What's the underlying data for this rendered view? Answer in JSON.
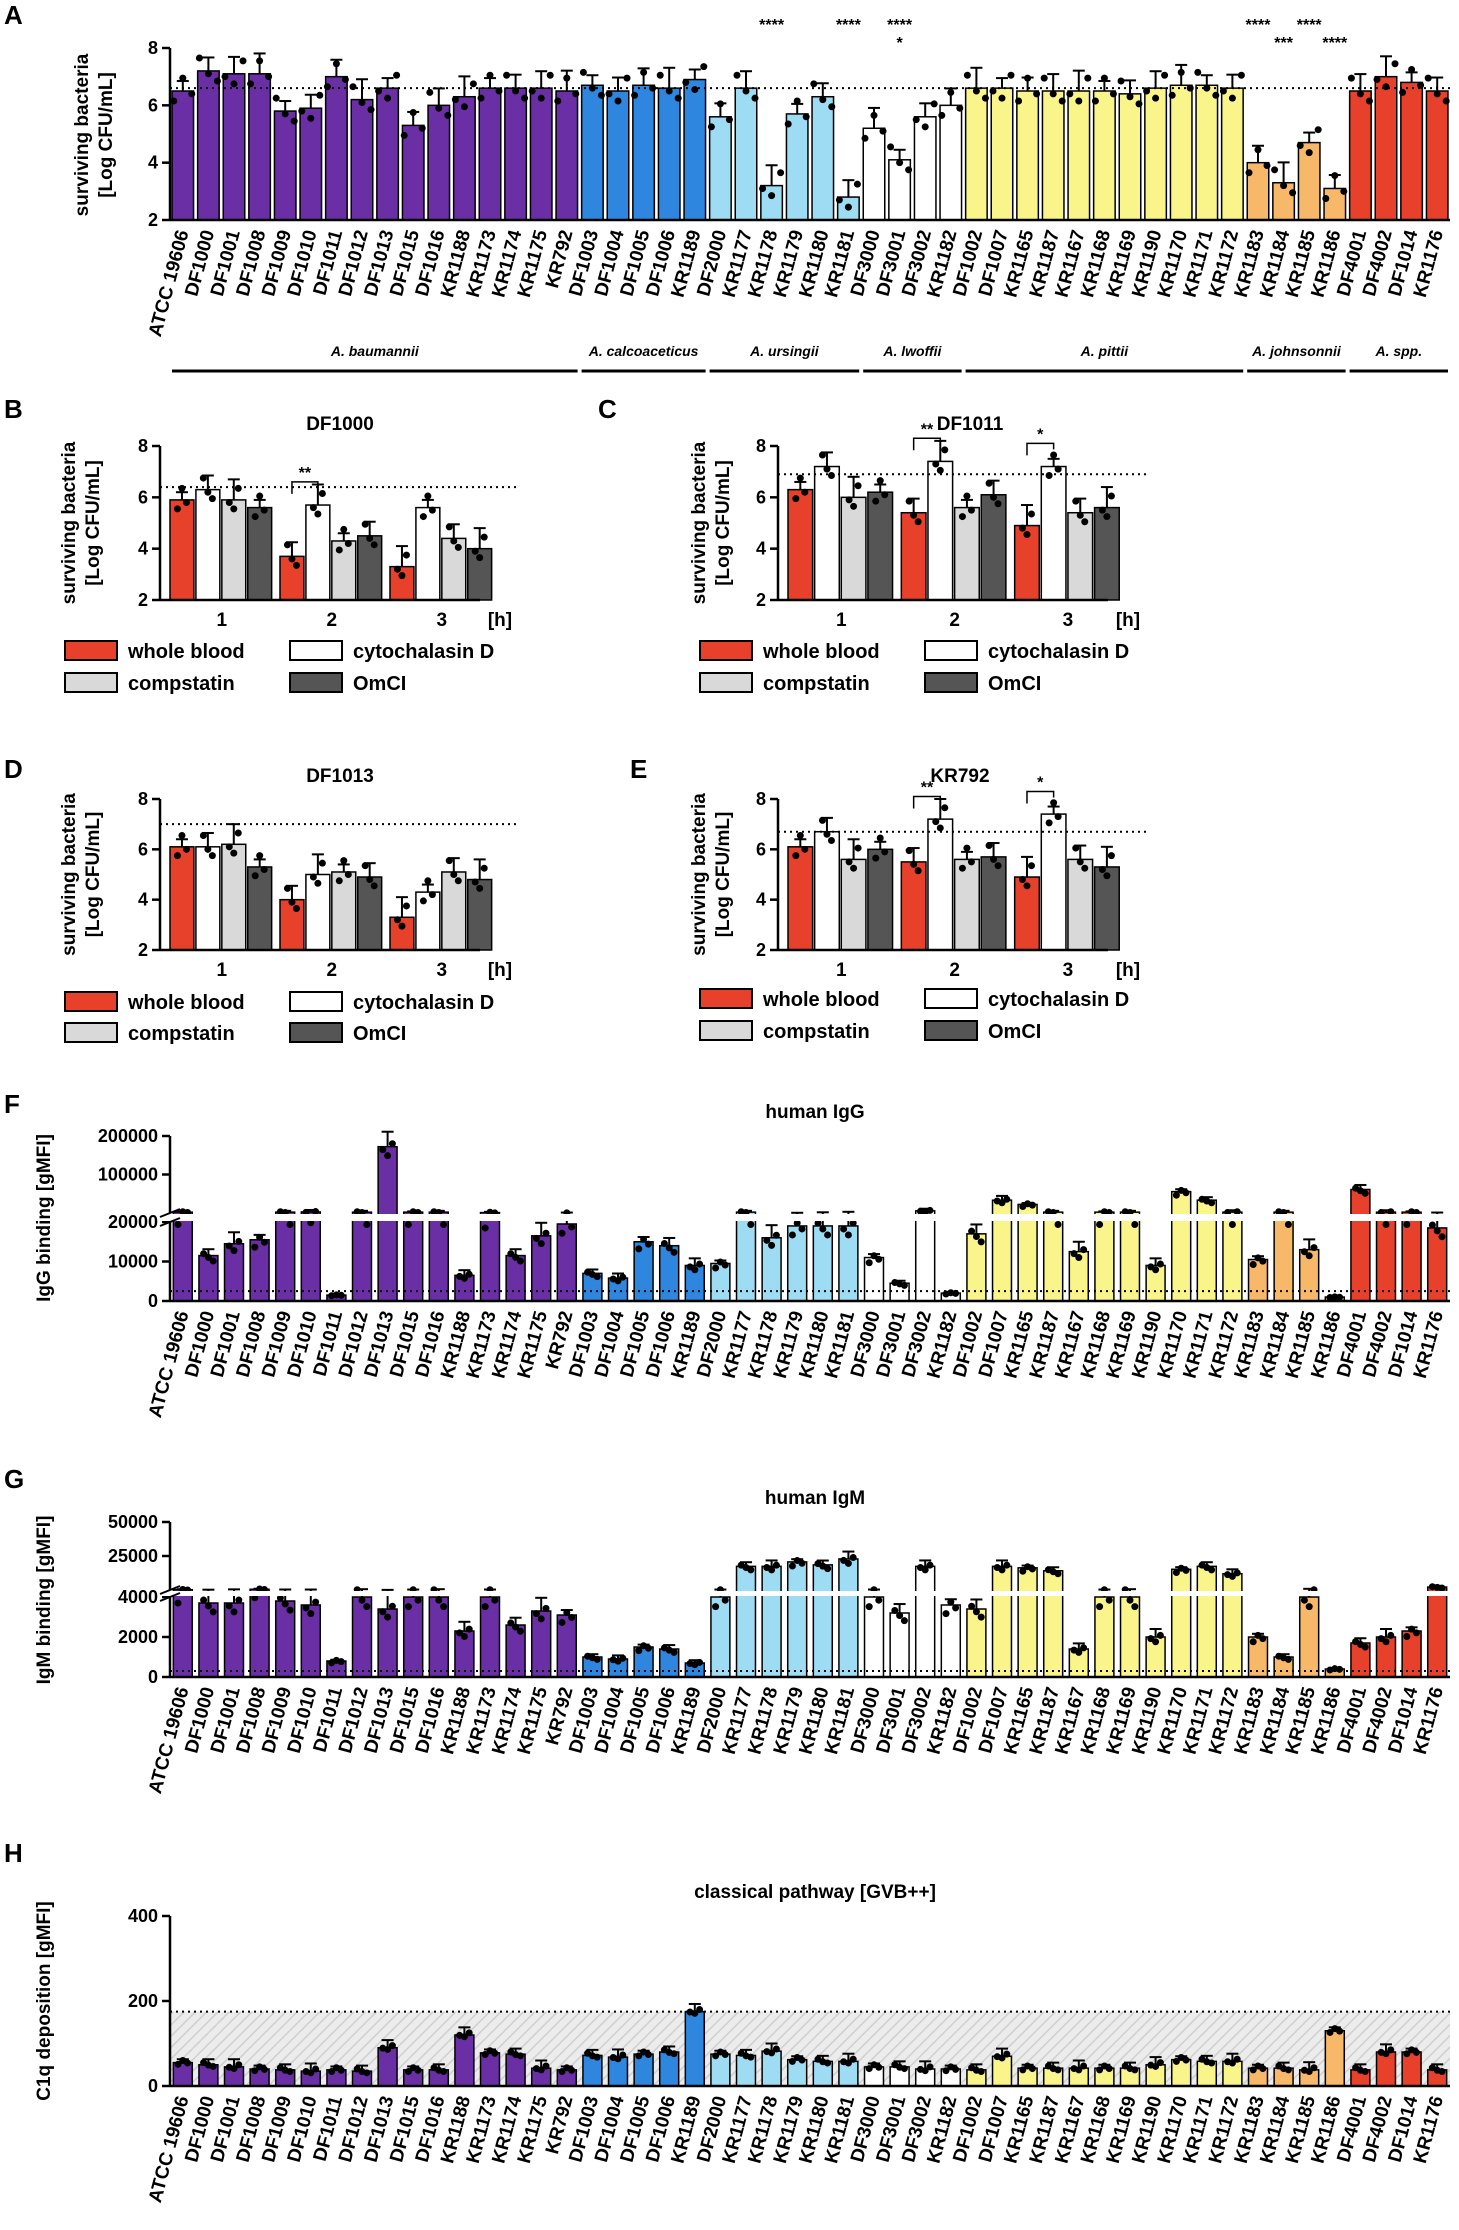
{
  "colors": {
    "purple": "#6b2fa5",
    "blue": "#2e86de",
    "lightblue": "#9edcf4",
    "white": "#ffffff",
    "yellow": "#faf58a",
    "orange": "#f7b86a",
    "red": "#e8412b",
    "lightgray": "#d9d9d9",
    "darkgray": "#555555"
  },
  "legend": {
    "whole_blood": "whole blood",
    "cytochalasin": "cytochalasin D",
    "compstatin": "compstatin",
    "omci": "OmCI"
  },
  "chart_data": [
    {
      "panel": "A",
      "type": "bar",
      "title": "",
      "ylabel": [
        "surviving bacteria",
        "[Log CFU/mL]"
      ],
      "ylim": [
        2,
        8
      ],
      "yticks": [
        "2",
        "4",
        "6",
        "8"
      ],
      "threshold": 6.6,
      "categories": [
        "ATCC 19606",
        "DF1000",
        "DF1001",
        "DF1008",
        "DF1009",
        "DF1010",
        "DF1011",
        "DF1012",
        "DF1013",
        "DF1015",
        "DF1016",
        "KR1188",
        "KR1173",
        "KR1174",
        "KR1175",
        "KR792",
        "DF1003",
        "DF1004",
        "DF1005",
        "DF1006",
        "KR1189",
        "DF2000",
        "KR1177",
        "KR1178",
        "KR1179",
        "KR1180",
        "KR1181",
        "DF3000",
        "DF3001",
        "DF3002",
        "KR1182",
        "DF1002",
        "DF1007",
        "KR1165",
        "KR1187",
        "KR1167",
        "KR1168",
        "KR1169",
        "KR1190",
        "KR1170",
        "KR1171",
        "KR1172",
        "KR1183",
        "KR1184",
        "KR1185",
        "KR1186",
        "DF4001",
        "DF4002",
        "DF1014",
        "KR1176"
      ],
      "groups": [
        "purple",
        "purple",
        "purple",
        "purple",
        "purple",
        "purple",
        "purple",
        "purple",
        "purple",
        "purple",
        "purple",
        "purple",
        "purple",
        "purple",
        "purple",
        "purple",
        "blue",
        "blue",
        "blue",
        "blue",
        "blue",
        "lightblue",
        "lightblue",
        "lightblue",
        "lightblue",
        "lightblue",
        "lightblue",
        "white",
        "white",
        "white",
        "white",
        "yellow",
        "yellow",
        "yellow",
        "yellow",
        "yellow",
        "yellow",
        "yellow",
        "yellow",
        "yellow",
        "yellow",
        "yellow",
        "orange",
        "orange",
        "orange",
        "orange",
        "red",
        "red",
        "red",
        "red"
      ],
      "values": [
        6.5,
        7.2,
        7.1,
        7.1,
        5.8,
        5.9,
        7.0,
        6.2,
        6.6,
        5.3,
        6.0,
        6.3,
        6.6,
        6.6,
        6.6,
        6.5,
        6.7,
        6.5,
        6.7,
        6.6,
        6.9,
        5.6,
        6.6,
        3.2,
        5.7,
        6.3,
        2.8,
        5.2,
        4.1,
        5.6,
        6.0,
        6.6,
        6.6,
        6.5,
        6.5,
        6.5,
        6.5,
        6.4,
        6.6,
        6.7,
        6.7,
        6.6,
        4.0,
        3.3,
        4.7,
        3.1,
        6.5,
        7.0,
        6.8,
        6.5
      ],
      "stars": [
        {
          "category": "KR1178",
          "text": "****",
          "row": 0
        },
        {
          "category": "KR1181",
          "text": "****",
          "row": 0
        },
        {
          "category": "DF3001",
          "text": "****",
          "row": 0
        },
        {
          "category": "DF3001",
          "text": "*",
          "row": 1
        },
        {
          "category": "KR1183",
          "text": "****",
          "row": 0
        },
        {
          "category": "KR1184",
          "text": "***",
          "row": 1
        },
        {
          "category": "KR1185",
          "text": "****",
          "row": 0
        },
        {
          "category": "KR1186",
          "text": "****",
          "row": 1
        }
      ],
      "species": [
        {
          "name": "A. baumannii",
          "from": 0,
          "to": 15
        },
        {
          "name": "A. calcoaceticus",
          "from": 16,
          "to": 20
        },
        {
          "name": "A. ursingii",
          "from": 21,
          "to": 26
        },
        {
          "name": "A. lwoffii",
          "from": 27,
          "to": 30
        },
        {
          "name": "A. pittii",
          "from": 31,
          "to": 41
        },
        {
          "name": "A. johnsonnii",
          "from": 42,
          "to": 45
        },
        {
          "name": "A. spp.",
          "from": 46,
          "to": 49
        }
      ]
    },
    {
      "panel": "B",
      "type": "bar",
      "title": "DF1000",
      "ylabel": [
        "surviving bacteria",
        "[Log CFU/mL]"
      ],
      "ylim": [
        2,
        8
      ],
      "yticks": [
        "2",
        "4",
        "6",
        "8"
      ],
      "threshold": 6.4,
      "xlabels": [
        "1",
        "2",
        "3"
      ],
      "xunit": "[h]",
      "series": [
        {
          "name": "whole blood",
          "values": [
            5.9,
            3.7,
            3.3
          ]
        },
        {
          "name": "cytochalasin D",
          "values": [
            6.3,
            5.7,
            5.6
          ]
        },
        {
          "name": "compstatin",
          "values": [
            5.9,
            4.3,
            4.4
          ]
        },
        {
          "name": "OmCI",
          "values": [
            5.6,
            4.5,
            4.0
          ]
        }
      ],
      "sig": [
        {
          "group": 1,
          "text": "**"
        }
      ]
    },
    {
      "panel": "C",
      "type": "bar",
      "title": "DF1011",
      "ylabel": [
        "surviving bacteria",
        "[Log CFU/mL]"
      ],
      "ylim": [
        2,
        8
      ],
      "yticks": [
        "2",
        "4",
        "6",
        "8"
      ],
      "threshold": 6.9,
      "xlabels": [
        "1",
        "2",
        "3"
      ],
      "xunit": "[h]",
      "series": [
        {
          "name": "whole blood",
          "values": [
            6.3,
            5.4,
            4.9
          ]
        },
        {
          "name": "cytochalasin D",
          "values": [
            7.2,
            7.4,
            7.2
          ]
        },
        {
          "name": "compstatin",
          "values": [
            6.0,
            5.6,
            5.4
          ]
        },
        {
          "name": "OmCI",
          "values": [
            6.2,
            6.1,
            5.6
          ]
        }
      ],
      "sig": [
        {
          "group": 1,
          "text": "**"
        },
        {
          "group": 2,
          "text": "*"
        }
      ]
    },
    {
      "panel": "D",
      "type": "bar",
      "title": "DF1013",
      "ylabel": [
        "surviving bacteria",
        "[Log CFU/mL]"
      ],
      "ylim": [
        2,
        8
      ],
      "yticks": [
        "2",
        "4",
        "6",
        "8"
      ],
      "threshold": 7.0,
      "xlabels": [
        "1",
        "2",
        "3"
      ],
      "xunit": "[h]",
      "series": [
        {
          "name": "whole blood",
          "values": [
            6.1,
            4.0,
            3.3
          ]
        },
        {
          "name": "cytochalasin D",
          "values": [
            6.1,
            5.0,
            4.3
          ]
        },
        {
          "name": "compstatin",
          "values": [
            6.2,
            5.1,
            5.1
          ]
        },
        {
          "name": "OmCI",
          "values": [
            5.3,
            4.9,
            4.8
          ]
        }
      ],
      "sig": []
    },
    {
      "panel": "E",
      "type": "bar",
      "title": "KR792",
      "ylabel": [
        "surviving bacteria",
        "[Log CFU/mL]"
      ],
      "ylim": [
        2,
        8
      ],
      "yticks": [
        "2",
        "4",
        "6",
        "8"
      ],
      "threshold": 6.7,
      "xlabels": [
        "1",
        "2",
        "3"
      ],
      "xunit": "[h]",
      "series": [
        {
          "name": "whole blood",
          "values": [
            6.1,
            5.5,
            4.9
          ]
        },
        {
          "name": "cytochalasin D",
          "values": [
            6.7,
            7.2,
            7.4
          ]
        },
        {
          "name": "compstatin",
          "values": [
            5.6,
            5.6,
            5.6
          ]
        },
        {
          "name": "OmCI",
          "values": [
            6.0,
            5.7,
            5.3
          ]
        }
      ],
      "sig": [
        {
          "group": 1,
          "text": "**"
        },
        {
          "group": 2,
          "text": "*"
        }
      ]
    },
    {
      "panel": "F",
      "type": "bar",
      "title": "human IgG",
      "ylabel": [
        "IgG binding [gMFI]"
      ],
      "axis_break": {
        "lower": [
          0,
          20000
        ],
        "upper": [
          20000,
          200000
        ]
      },
      "yticks_lower": [
        "0",
        "10000",
        "20000"
      ],
      "yticks_upper": [
        "100000",
        "200000"
      ],
      "threshold": 2500,
      "values": [
        22000,
        11500,
        14500,
        15500,
        22000,
        22500,
        1500,
        22000,
        175000,
        22000,
        22000,
        6500,
        21000,
        11500,
        16500,
        19500,
        7000,
        5800,
        15000,
        14000,
        9000,
        9500,
        22000,
        16000,
        19000,
        19000,
        19000,
        11000,
        4500,
        25000,
        2000,
        17000,
        50000,
        40000,
        22000,
        12500,
        22000,
        22000,
        9000,
        70000,
        50000,
        22000,
        10500,
        22000,
        13000,
        1000,
        75000,
        22000,
        22000,
        18500
      ]
    },
    {
      "panel": "G",
      "type": "bar",
      "title": "human IgM",
      "ylabel": [
        "IgM binding [gMFI]"
      ],
      "axis_break": {
        "lower": [
          0,
          4000
        ],
        "upper": [
          4000,
          50000
        ]
      },
      "yticks_lower": [
        "0",
        "2000",
        "4000"
      ],
      "yticks_upper": [
        "25000",
        "50000"
      ],
      "threshold": 300,
      "values": [
        4200,
        3700,
        3700,
        4500,
        3800,
        3600,
        800,
        4000,
        3400,
        4000,
        4000,
        2300,
        4000,
        2600,
        3300,
        3100,
        1000,
        900,
        1500,
        1400,
        700,
        4000,
        20000,
        20000,
        23000,
        21000,
        25000,
        4000,
        3200,
        20000,
        3600,
        3400,
        20000,
        19000,
        17000,
        1400,
        4000,
        4000,
        2000,
        18000,
        20000,
        15000,
        2000,
        1000,
        4000,
        400,
        1700,
        2000,
        2300,
        6000
      ]
    },
    {
      "panel": "H",
      "type": "bar",
      "title": "classical pathway [GVB++]",
      "ylabel": [
        "C1q deposition [gMFI]"
      ],
      "ylim": [
        0,
        400
      ],
      "yticks": [
        "0",
        "200",
        "400"
      ],
      "threshold": 175,
      "values": [
        55,
        50,
        45,
        40,
        38,
        35,
        38,
        35,
        90,
        38,
        38,
        120,
        78,
        75,
        42,
        38,
        72,
        68,
        75,
        80,
        175,
        75,
        72,
        82,
        62,
        58,
        58,
        45,
        45,
        40,
        40,
        38,
        70,
        42,
        42,
        42,
        42,
        42,
        50,
        62,
        58,
        58,
        42,
        42,
        38,
        130,
        38,
        80,
        80,
        38
      ]
    }
  ]
}
